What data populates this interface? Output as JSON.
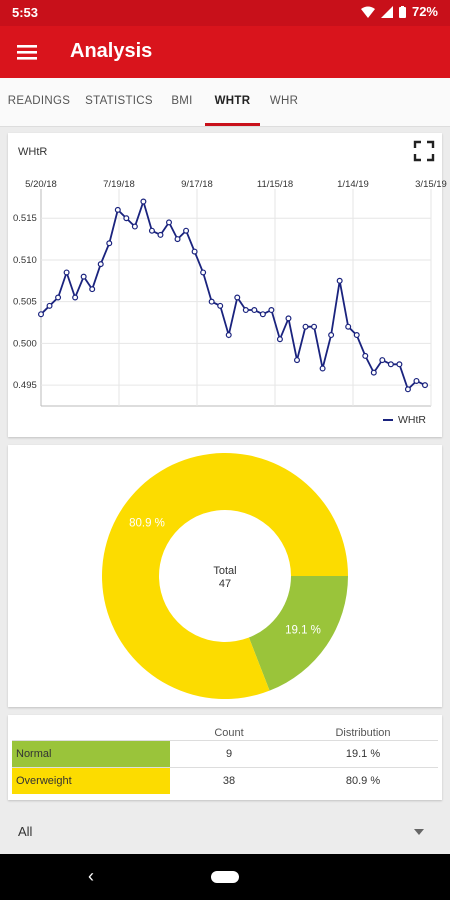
{
  "status": {
    "time": "5:53",
    "battery": "72%"
  },
  "appbar": {
    "title": "Analysis"
  },
  "tabs": [
    {
      "label": "READINGS"
    },
    {
      "label": "STATISTICS"
    },
    {
      "label": "BMI"
    },
    {
      "label": "WHTR"
    },
    {
      "label": "WHR"
    }
  ],
  "active_tab": "WHTR",
  "line_chart": {
    "title": "WHtR",
    "legend": "WHtR",
    "series_color": "#1a237e"
  },
  "chart_data": [
    {
      "type": "line",
      "title": "WHtR",
      "x_tick_labels": [
        "5/20/18",
        "7/19/18",
        "9/17/18",
        "11/15/18",
        "1/14/19",
        "3/15/19"
      ],
      "y_tick_labels": [
        "0.495",
        "0.500",
        "0.505",
        "0.510",
        "0.515"
      ],
      "ylim": [
        0.4925,
        0.5185
      ],
      "series": [
        {
          "name": "WHtR",
          "values": [
            0.5035,
            0.5045,
            0.5055,
            0.5085,
            0.5055,
            0.508,
            0.5065,
            0.5095,
            0.512,
            0.516,
            0.515,
            0.514,
            0.517,
            0.5135,
            0.513,
            0.5145,
            0.5125,
            0.5135,
            0.511,
            0.5085,
            0.505,
            0.5045,
            0.501,
            0.5055,
            0.504,
            0.504,
            0.5035,
            0.504,
            0.5005,
            0.503,
            0.498,
            0.502,
            0.502,
            0.497,
            0.501,
            0.5075,
            0.502,
            0.501,
            0.4985,
            0.4965,
            0.498,
            0.4975,
            0.4975,
            0.4945,
            0.4955,
            0.495
          ]
        }
      ],
      "legend": "bottom-right",
      "grid": true
    },
    {
      "type": "pie",
      "center_label": "Total",
      "center_value": "47",
      "slices": [
        {
          "label": "Normal",
          "value": 19.1,
          "text": "19.1 %",
          "color": "#9ac43a"
        },
        {
          "label": "Overweight",
          "value": 80.9,
          "text": "80.9 %",
          "color": "#fcdc00"
        }
      ]
    }
  ],
  "table": {
    "headers": {
      "count": "Count",
      "distribution": "Distribution"
    },
    "rows": [
      {
        "label": "Normal",
        "count": "9",
        "distribution": "19.1 %",
        "color": "#9ac43a"
      },
      {
        "label": "Overweight",
        "count": "38",
        "distribution": "80.9 %",
        "color": "#fcdc00"
      }
    ]
  },
  "filter": {
    "selected": "All"
  }
}
